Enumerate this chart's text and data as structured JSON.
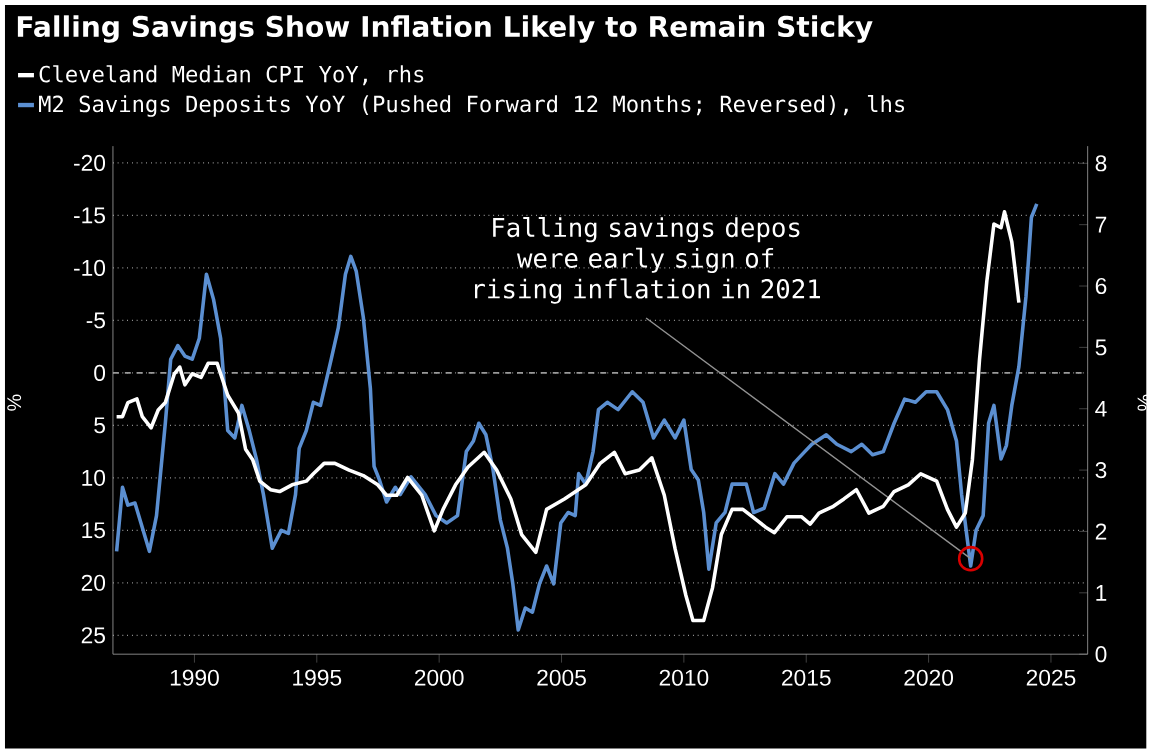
{
  "chart_data": {
    "type": "line",
    "title": "Falling Savings Show Inflation Likely to Remain Sticky",
    "ylabel": "%",
    "y2label": "%",
    "series": [
      {
        "name": "Cleveland Median CPI YoY, rhs",
        "color": "#ffffff",
        "axis": "y2",
        "x": [
          1986.82,
          1987.06,
          1987.28,
          1987.65,
          1987.87,
          1988.23,
          1988.52,
          1988.81,
          1989.18,
          1989.4,
          1989.61,
          1989.91,
          1990.27,
          1990.56,
          1990.93,
          1991.36,
          1991.8,
          1992.09,
          1992.38,
          1992.67,
          1993.11,
          1993.48,
          1993.99,
          1994.57,
          1994.86,
          1995.3,
          1995.74,
          1996.32,
          1996.9,
          1997.49,
          1997.85,
          1998.27,
          1998.71,
          1999.29,
          1999.8,
          2000.16,
          2000.67,
          2001.18,
          2001.84,
          2002.35,
          2002.93,
          2003.37,
          2003.95,
          2004.39,
          2005.12,
          2005.99,
          2006.58,
          2007.16,
          2007.6,
          2008.18,
          2008.69,
          2009.2,
          2009.64,
          2010.08,
          2010.37,
          2010.81,
          2011.17,
          2011.53,
          2011.97,
          2012.41,
          2012.99,
          2013.34,
          2013.7,
          2014.21,
          2014.8,
          2015.16,
          2015.52,
          2016.11,
          2016.54,
          2017.05,
          2017.56,
          2018.15,
          2018.59,
          2019.17,
          2019.68,
          2020.33,
          2020.77,
          2021.14,
          2021.5,
          2021.79,
          2022.08,
          2022.38,
          2022.67,
          2022.96,
          2023.1,
          2023.4,
          2023.69
        ],
        "values": [
          3.87,
          3.87,
          4.1,
          4.16,
          3.87,
          3.69,
          3.98,
          4.1,
          4.57,
          4.68,
          4.39,
          4.57,
          4.51,
          4.74,
          4.74,
          4.22,
          3.93,
          3.34,
          3.17,
          2.82,
          2.68,
          2.65,
          2.76,
          2.82,
          2.94,
          3.11,
          3.11,
          3.0,
          2.91,
          2.76,
          2.59,
          2.59,
          2.88,
          2.59,
          2.01,
          2.36,
          2.76,
          3.05,
          3.29,
          3.0,
          2.53,
          1.95,
          1.66,
          2.36,
          2.53,
          2.76,
          3.11,
          3.29,
          2.94,
          3.0,
          3.2,
          2.59,
          1.72,
          0.96,
          0.55,
          0.55,
          1.08,
          1.95,
          2.36,
          2.36,
          2.18,
          2.07,
          1.98,
          2.24,
          2.24,
          2.12,
          2.3,
          2.41,
          2.53,
          2.68,
          2.3,
          2.41,
          2.65,
          2.76,
          2.94,
          2.82,
          2.36,
          2.07,
          2.3,
          3.17,
          4.8,
          6.08,
          7.01,
          6.95,
          7.21,
          6.72,
          5.73
        ]
      },
      {
        "name": "M2 Savings Deposits YoY (Pushed Forward 12 Months; Reversed), lhs",
        "color": "#5b8fd1",
        "axis": "y",
        "x": [
          1986.82,
          1987.06,
          1987.28,
          1987.57,
          1988.16,
          1988.45,
          1988.81,
          1989.03,
          1989.32,
          1989.61,
          1989.91,
          1990.2,
          1990.49,
          1990.78,
          1991.07,
          1991.36,
          1991.65,
          1991.94,
          1992.24,
          1992.53,
          1992.82,
          1993.18,
          1993.55,
          1993.84,
          1994.13,
          1994.28,
          1994.57,
          1994.86,
          1995.15,
          1995.59,
          1995.88,
          1996.17,
          1996.39,
          1996.61,
          1996.9,
          1997.19,
          1997.34,
          1997.56,
          1997.85,
          1998.21,
          1998.41,
          1998.85,
          1999.43,
          1999.87,
          2000.31,
          2000.75,
          2001.11,
          2001.4,
          2001.62,
          2001.91,
          2002.2,
          2002.5,
          2002.79,
          2003.01,
          2003.23,
          2003.52,
          2003.81,
          2004.1,
          2004.39,
          2004.68,
          2004.97,
          2005.27,
          2005.56,
          2005.7,
          2005.99,
          2006.29,
          2006.51,
          2006.87,
          2007.31,
          2007.89,
          2008.33,
          2008.76,
          2009.2,
          2009.64,
          2010.0,
          2010.3,
          2010.59,
          2010.81,
          2011.02,
          2011.32,
          2011.68,
          2011.97,
          2012.55,
          2012.85,
          2013.28,
          2013.72,
          2014.07,
          2014.5,
          2014.94,
          2015.23,
          2015.82,
          2016.25,
          2016.84,
          2017.27,
          2017.71,
          2018.15,
          2018.59,
          2019.02,
          2019.46,
          2019.9,
          2020.33,
          2020.77,
          2021.14,
          2021.35,
          2021.72,
          2021.94,
          2022.23,
          2022.45,
          2022.67,
          2022.96,
          2023.18,
          2023.4,
          2023.69,
          2023.98,
          2024.2,
          2024.42
        ],
        "values": [
          17.0,
          10.9,
          12.6,
          12.4,
          17.0,
          13.6,
          4.8,
          -1.3,
          -2.6,
          -1.6,
          -1.3,
          -3.3,
          -9.4,
          -7.0,
          -3.3,
          5.5,
          6.2,
          3.1,
          5.5,
          8.2,
          11.6,
          16.7,
          15.0,
          15.3,
          11.6,
          7.2,
          5.5,
          2.8,
          3.1,
          -1.3,
          -4.3,
          -9.4,
          -11.1,
          -9.7,
          -5.3,
          1.5,
          8.9,
          10.2,
          12.3,
          10.9,
          11.6,
          9.9,
          11.6,
          13.6,
          14.3,
          13.6,
          7.5,
          6.5,
          4.8,
          5.9,
          9.2,
          14.0,
          16.7,
          20.1,
          24.5,
          22.4,
          22.8,
          20.1,
          18.4,
          20.1,
          14.3,
          13.3,
          13.6,
          9.6,
          10.6,
          7.5,
          3.5,
          2.8,
          3.5,
          1.8,
          2.8,
          6.2,
          4.5,
          6.2,
          4.5,
          9.2,
          10.2,
          13.3,
          18.7,
          14.3,
          13.3,
          10.6,
          10.6,
          13.3,
          12.9,
          9.6,
          10.6,
          8.6,
          7.5,
          6.8,
          5.9,
          6.8,
          7.5,
          6.8,
          7.8,
          7.5,
          4.8,
          2.5,
          2.8,
          1.8,
          1.8,
          3.5,
          6.5,
          11.6,
          18.4,
          15.0,
          13.6,
          4.8,
          3.1,
          8.2,
          6.9,
          3.1,
          -0.6,
          -7.3,
          -14.8,
          -16.1
        ]
      }
    ],
    "xlim": [
      1986.67,
      2026.5
    ],
    "xticks": [
      1990,
      1995,
      2000,
      2005,
      2010,
      2015,
      2020,
      2025
    ],
    "ylim": [
      26.8,
      -21.6
    ],
    "yticks": [
      -20,
      -15,
      -10,
      -5,
      0,
      5,
      10,
      15,
      20,
      25
    ],
    "y2lim": [
      0,
      8.28
    ],
    "y2ticks": [
      0,
      1,
      2,
      3,
      4,
      5,
      6,
      7,
      8
    ],
    "grid": "y",
    "legend": "top left",
    "ref_lines": [
      {
        "axis": "y",
        "value": 0,
        "line_style": "dashed"
      }
    ],
    "annotations": [
      {
        "text": "Falling savings depos were early sign of rising inflation in 2021",
        "x": 2021.72,
        "y": 17.7
      }
    ]
  }
}
